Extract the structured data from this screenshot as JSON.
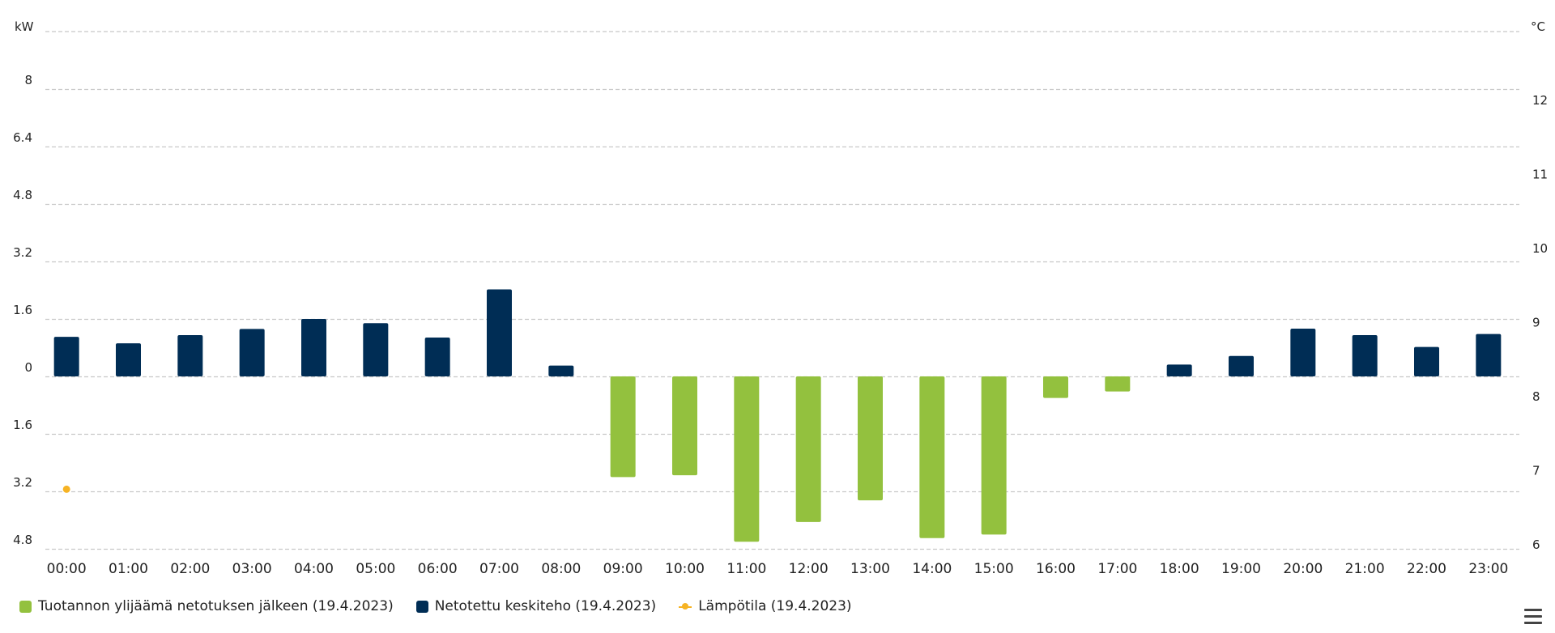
{
  "chart_data": {
    "type": "bar",
    "categories": [
      "00:00",
      "01:00",
      "02:00",
      "03:00",
      "04:00",
      "05:00",
      "06:00",
      "07:00",
      "08:00",
      "09:00",
      "10:00",
      "11:00",
      "12:00",
      "13:00",
      "14:00",
      "15:00",
      "16:00",
      "17:00",
      "18:00",
      "19:00",
      "20:00",
      "21:00",
      "22:00",
      "23:00"
    ],
    "series": [
      {
        "name": "Tuotannon ylijäämä netotuksen jälkeen (19.4.2023)",
        "kind": "bar",
        "color": "#93c13e",
        "values": [
          null,
          null,
          null,
          null,
          null,
          null,
          null,
          null,
          null,
          -2.8,
          -2.75,
          -4.6,
          -4.05,
          -3.45,
          -4.5,
          -4.4,
          -0.6,
          -0.42,
          null,
          null,
          null,
          null,
          null,
          null
        ]
      },
      {
        "name": "Netotettu keskiteho (19.4.2023)",
        "kind": "bar",
        "color": "#002d55",
        "values": [
          1.1,
          0.92,
          1.15,
          1.32,
          1.6,
          1.48,
          1.08,
          2.42,
          0.3,
          null,
          null,
          null,
          null,
          null,
          null,
          null,
          null,
          null,
          0.33,
          0.57,
          1.33,
          1.15,
          0.82,
          1.18
        ]
      },
      {
        "name": "Lämpötila (19.4.2023)",
        "kind": "line",
        "color": "#f6b324",
        "axis": "right",
        "values": [
          6.75,
          null,
          null,
          null,
          null,
          null,
          null,
          null,
          null,
          null,
          null,
          null,
          null,
          null,
          null,
          null,
          null,
          null,
          null,
          null,
          null,
          null,
          null,
          null
        ]
      }
    ],
    "y_left": {
      "unit": "kW",
      "ticks": [
        {
          "value": 8,
          "label": "8"
        },
        {
          "value": 6.4,
          "label": "6.4"
        },
        {
          "value": 4.8,
          "label": "4.8"
        },
        {
          "value": 3.2,
          "label": "3.2"
        },
        {
          "value": 1.6,
          "label": "1.6"
        },
        {
          "value": 0,
          "label": "0"
        },
        {
          "value": -1.6,
          "label": "1.6"
        },
        {
          "value": -3.2,
          "label": "3.2"
        },
        {
          "value": -4.8,
          "label": "4.8"
        }
      ],
      "ylim": [
        -4.8,
        9.6
      ]
    },
    "y_right": {
      "unit": "°C",
      "ticks": [
        {
          "value": 12,
          "label": "12"
        },
        {
          "value": 11,
          "label": "11"
        },
        {
          "value": 10,
          "label": "10"
        },
        {
          "value": 9,
          "label": "9"
        },
        {
          "value": 8,
          "label": "8"
        },
        {
          "value": 7,
          "label": "7"
        },
        {
          "value": 6,
          "label": "6"
        }
      ],
      "ylim": [
        6,
        13
      ]
    },
    "grid": true,
    "legend_position": "bottom-left",
    "gridline_color": "#c8c8c8",
    "axis_text_color": "#222222"
  }
}
